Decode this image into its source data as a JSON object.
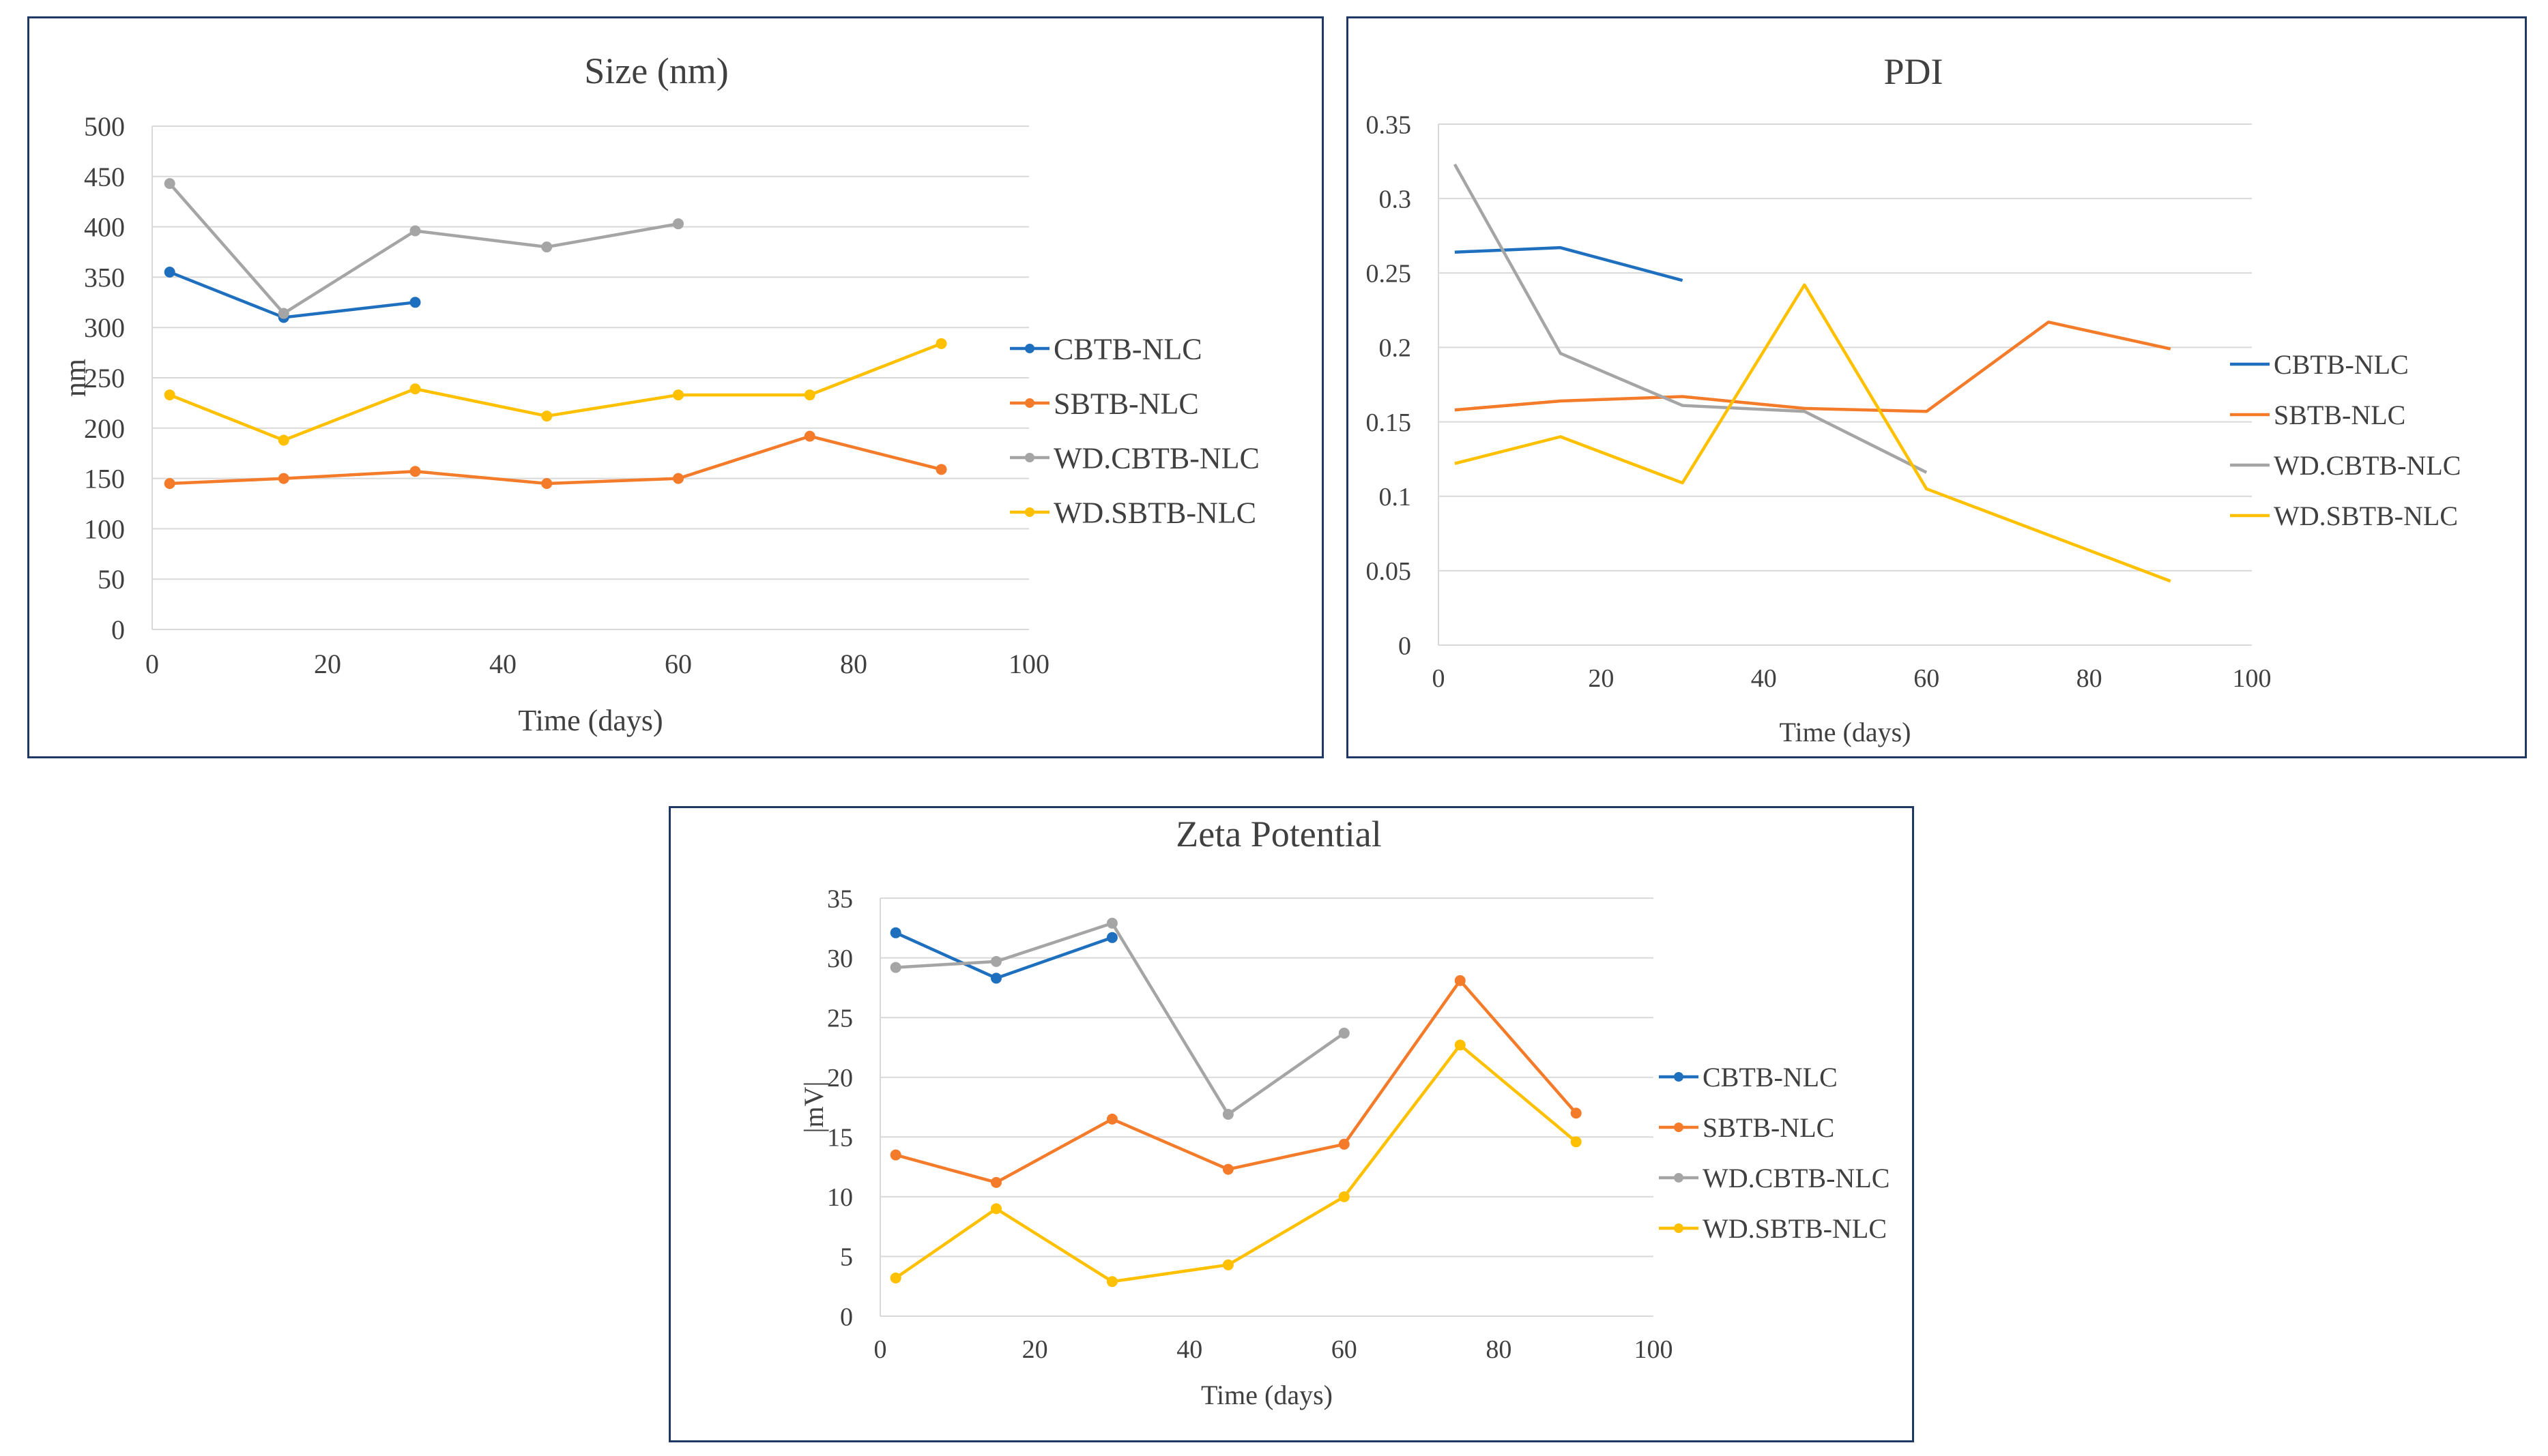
{
  "charts": {
    "size": {
      "type": "line",
      "title": "Size (nm)",
      "xlabel": "Time (days)",
      "ylabel": "nm",
      "xlim": [
        0,
        100
      ],
      "ylim": [
        0,
        500
      ],
      "xticks": [
        0,
        20,
        40,
        60,
        80,
        100
      ],
      "yticks": [
        0,
        50,
        100,
        150,
        200,
        250,
        300,
        350,
        400,
        450,
        500
      ],
      "markers": true,
      "series": [
        {
          "name": "CBTB-NLC",
          "color": "#1f6fbf",
          "points": [
            [
              2,
              355
            ],
            [
              15,
              310
            ],
            [
              30,
              325
            ]
          ]
        },
        {
          "name": "SBTB-NLC",
          "color": "#f47b2a",
          "points": [
            [
              2,
              145
            ],
            [
              15,
              150
            ],
            [
              30,
              157
            ],
            [
              45,
              145
            ],
            [
              60,
              150
            ],
            [
              75,
              192
            ],
            [
              90,
              159
            ]
          ]
        },
        {
          "name": "WD.CBTB-NLC",
          "color": "#a5a5a5",
          "points": [
            [
              2,
              443
            ],
            [
              15,
              314
            ],
            [
              30,
              396
            ],
            [
              45,
              380
            ],
            [
              60,
              403
            ]
          ]
        },
        {
          "name": "WD.SBTB-NLC",
          "color": "#ffc000",
          "points": [
            [
              2,
              233
            ],
            [
              15,
              188
            ],
            [
              30,
              239
            ],
            [
              45,
              212
            ],
            [
              60,
              233
            ],
            [
              75,
              233
            ],
            [
              90,
              284
            ]
          ]
        }
      ]
    },
    "pdi": {
      "type": "line",
      "title": "PDI",
      "xlabel": "Time (days)",
      "ylabel": "",
      "xlim": [
        0,
        100
      ],
      "ylim": [
        0,
        0.35
      ],
      "xticks": [
        0,
        20,
        40,
        60,
        80,
        100
      ],
      "yticks": [
        0,
        0.05,
        0.1,
        0.15,
        0.2,
        0.25,
        0.3,
        0.35
      ],
      "markers": false,
      "series": [
        {
          "name": "CBTB-NLC",
          "color": "#1f6fbf",
          "points": [
            [
              2,
              0.264
            ],
            [
              15,
              0.267
            ],
            [
              30,
              0.245
            ]
          ]
        },
        {
          "name": "SBTB-NLC",
          "color": "#f47b2a",
          "points": [
            [
              2,
              0.158
            ],
            [
              15,
              0.164
            ],
            [
              30,
              0.167
            ],
            [
              45,
              0.159
            ],
            [
              60,
              0.157
            ],
            [
              75,
              0.217
            ],
            [
              90,
              0.199
            ]
          ]
        },
        {
          "name": "WD.CBTB-NLC",
          "color": "#a5a5a5",
          "points": [
            [
              2,
              0.323
            ],
            [
              15,
              0.196
            ],
            [
              30,
              0.161
            ],
            [
              45,
              0.157
            ],
            [
              60,
              0.116
            ]
          ]
        },
        {
          "name": "WD.SBTB-NLC",
          "color": "#ffc000",
          "points": [
            [
              2,
              0.122
            ],
            [
              15,
              0.14
            ],
            [
              30,
              0.109
            ],
            [
              45,
              0.242
            ],
            [
              60,
              0.105
            ],
            [
              75,
              0.074
            ],
            [
              90,
              0.043
            ]
          ]
        }
      ]
    },
    "zeta": {
      "type": "line",
      "title": "Zeta Potential",
      "xlabel": "Time (days)",
      "ylabel": "|mV|",
      "xlim": [
        0,
        100
      ],
      "ylim": [
        0,
        35
      ],
      "xticks": [
        0,
        20,
        40,
        60,
        80,
        100
      ],
      "yticks": [
        0,
        5,
        10,
        15,
        20,
        25,
        30,
        35
      ],
      "markers": true,
      "series": [
        {
          "name": "CBTB-NLC",
          "color": "#1f6fbf",
          "points": [
            [
              2,
              32.1
            ],
            [
              15,
              28.3
            ],
            [
              30,
              31.7
            ]
          ]
        },
        {
          "name": "SBTB-NLC",
          "color": "#f47b2a",
          "points": [
            [
              2,
              13.5
            ],
            [
              15,
              11.2
            ],
            [
              30,
              16.5
            ],
            [
              45,
              12.3
            ],
            [
              60,
              14.4
            ],
            [
              75,
              28.1
            ],
            [
              90,
              17.0
            ]
          ]
        },
        {
          "name": "WD.CBTB-NLC",
          "color": "#a5a5a5",
          "points": [
            [
              2,
              29.2
            ],
            [
              15,
              29.7
            ],
            [
              30,
              32.9
            ],
            [
              45,
              16.9
            ],
            [
              60,
              23.7
            ]
          ]
        },
        {
          "name": "WD.SBTB-NLC",
          "color": "#ffc000",
          "points": [
            [
              2,
              3.2
            ],
            [
              15,
              9.0
            ],
            [
              30,
              2.9
            ],
            [
              45,
              4.3
            ],
            [
              60,
              10.0
            ],
            [
              75,
              22.7
            ],
            [
              90,
              14.6
            ]
          ]
        }
      ]
    }
  }
}
